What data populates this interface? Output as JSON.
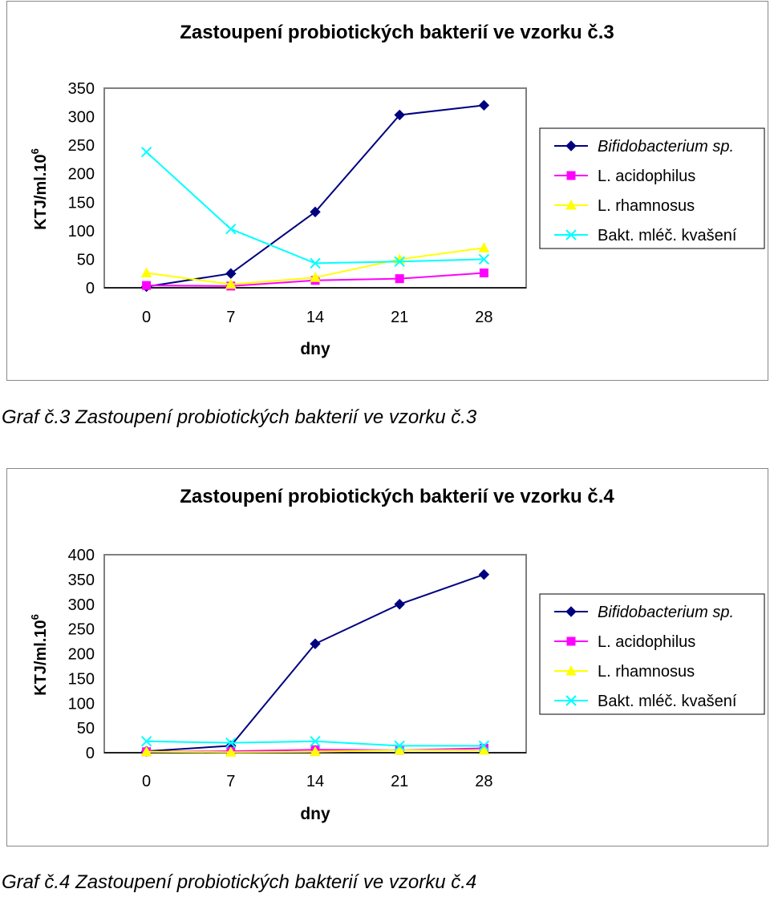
{
  "charts": [
    {
      "caption": "Graf č.3 Zastoupení probiotických bakterií ve vzorku č.3",
      "ylabel_base": "KTJ/ml.10",
      "ylabel_sup": "6"
    },
    {
      "caption": "Graf č.4 Zastoupení probiotických bakterií ve vzorku č.4",
      "ylabel_base": "KTJ/ml.10",
      "ylabel_sup": "6"
    }
  ],
  "chart_data": [
    {
      "type": "line",
      "title": "Zastoupení probiotických bakterií ve vzorku č.3",
      "xlabel": "dny",
      "ylabel": "KTJ/ml.10^6",
      "categories": [
        "0",
        "7",
        "14",
        "21",
        "28"
      ],
      "yticks": [
        "0",
        "50",
        "100",
        "150",
        "200",
        "250",
        "300",
        "350"
      ],
      "ylim": [
        0,
        350
      ],
      "legend_position": "right",
      "series": [
        {
          "name": "Bifidobacterium sp.",
          "values": [
            2,
            25,
            133,
            303,
            320
          ],
          "color": "#000080",
          "marker": "diamond"
        },
        {
          "name": "L. acidophilus",
          "values": [
            4,
            3,
            13,
            16,
            26
          ],
          "color": "#ff00ff",
          "marker": "square"
        },
        {
          "name": "L. rhamnosus",
          "values": [
            26,
            6,
            18,
            50,
            70
          ],
          "color": "#ffff00",
          "marker": "triangle"
        },
        {
          "name": "Bakt. mléč. kvašení",
          "values": [
            238,
            103,
            43,
            46,
            50
          ],
          "color": "#00ffff",
          "marker": "x"
        }
      ]
    },
    {
      "type": "line",
      "title": "Zastoupení probiotických bakterií ve vzorku č.4",
      "xlabel": "dny",
      "ylabel": "KTJ/ml.10^6",
      "categories": [
        "0",
        "7",
        "14",
        "21",
        "28"
      ],
      "yticks": [
        "0",
        "50",
        "100",
        "150",
        "200",
        "250",
        "300",
        "350",
        "400"
      ],
      "ylim": [
        0,
        400
      ],
      "legend_position": "right",
      "series": [
        {
          "name": "Bifidobacterium sp.",
          "values": [
            3,
            14,
            220,
            300,
            360
          ],
          "color": "#000080",
          "marker": "diamond"
        },
        {
          "name": "L. acidophilus",
          "values": [
            2,
            3,
            6,
            5,
            9
          ],
          "color": "#ff00ff",
          "marker": "square"
        },
        {
          "name": "L. rhamnosus",
          "values": [
            2,
            1,
            2,
            5,
            5
          ],
          "color": "#ffff00",
          "marker": "triangle"
        },
        {
          "name": "Bakt. mléč. kvašení",
          "values": [
            23,
            20,
            23,
            14,
            14
          ],
          "color": "#00ffff",
          "marker": "x"
        }
      ]
    }
  ]
}
